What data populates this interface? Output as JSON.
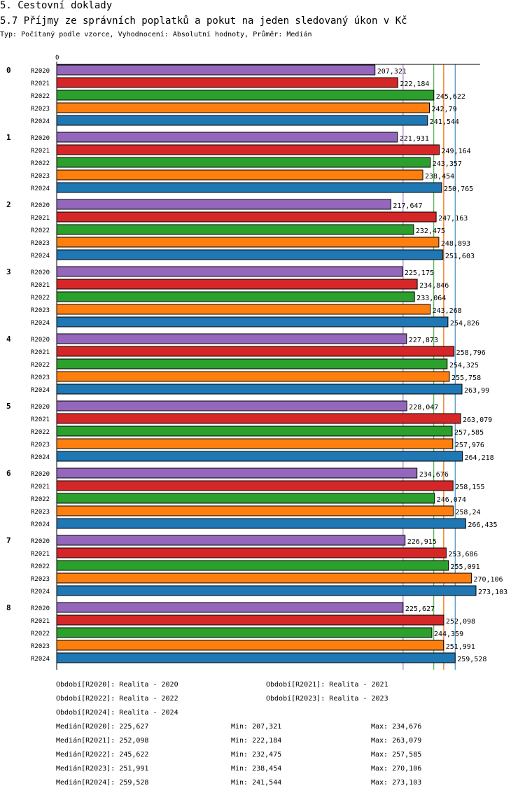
{
  "header": {
    "section": "5. Cestovní doklady",
    "title": "5.7 Příjmy ze správních poplatků a pokut na jeden sledovaný úkon v Kč",
    "subtitle": "Typ: Počítaný podle vzorce, Vyhodnocení: Absolutní hodnoty, Průměr: Medián"
  },
  "chart_data": {
    "type": "bar",
    "orientation": "horizontal",
    "axis_zero_label": "0",
    "xlim": [
      0,
      273103
    ],
    "groups": [
      "0",
      "1",
      "2",
      "3",
      "4",
      "5",
      "6",
      "7",
      "8"
    ],
    "series_names": [
      "R2020",
      "R2021",
      "R2022",
      "R2023",
      "R2024"
    ],
    "colors": [
      "#9467bd",
      "#d62728",
      "#2ca02c",
      "#ff7f0e",
      "#1f77b4"
    ],
    "values": [
      [
        207321,
        222184,
        245622,
        242790,
        241544
      ],
      [
        221931,
        249164,
        243357,
        238454,
        250765
      ],
      [
        217647,
        247163,
        232475,
        248893,
        251603
      ],
      [
        225175,
        234846,
        233064,
        243268,
        254826
      ],
      [
        227873,
        258796,
        254325,
        255758,
        263990
      ],
      [
        228047,
        263079,
        257585,
        257976,
        264218
      ],
      [
        234676,
        258155,
        246074,
        258240,
        266435
      ],
      [
        226915,
        253686,
        255091,
        270106,
        273103
      ],
      [
        225627,
        252098,
        244359,
        251991,
        259528
      ]
    ],
    "value_labels": [
      [
        "207,321",
        "222,184",
        "245,622",
        "242,79",
        "241,544"
      ],
      [
        "221,931",
        "249,164",
        "243,357",
        "238,454",
        "250,765"
      ],
      [
        "217,647",
        "247,163",
        "232,475",
        "248,893",
        "251,603"
      ],
      [
        "225,175",
        "234,846",
        "233,064",
        "243,268",
        "254,826"
      ],
      [
        "227,873",
        "258,796",
        "254,325",
        "255,758",
        "263,99"
      ],
      [
        "228,047",
        "263,079",
        "257,585",
        "257,976",
        "264,218"
      ],
      [
        "234,676",
        "258,155",
        "246,074",
        "258,24",
        "266,435"
      ],
      [
        "226,915",
        "253,686",
        "255,091",
        "270,106",
        "273,103"
      ],
      [
        "225,627",
        "252,098",
        "244,359",
        "251,991",
        "259,528"
      ]
    ],
    "median_lines": [
      225627,
      252098,
      245622,
      251991,
      259528
    ]
  },
  "legend": {
    "periods": [
      "Období[R2020]: Realita - 2020",
      "Období[R2021]: Realita - 2021",
      "Období[R2022]: Realita - 2022",
      "Období[R2023]: Realita - 2023",
      "Období[R2024]: Realita - 2024"
    ],
    "stats": [
      {
        "median": "Medián[R2020]: 225,627",
        "min": "Min: 207,321",
        "max": "Max: 234,676"
      },
      {
        "median": "Medián[R2021]: 252,098",
        "min": "Min: 222,184",
        "max": "Max: 263,079"
      },
      {
        "median": "Medián[R2022]: 245,622",
        "min": "Min: 232,475",
        "max": "Max: 257,585"
      },
      {
        "median": "Medián[R2023]: 251,991",
        "min": "Min: 238,454",
        "max": "Max: 270,106"
      },
      {
        "median": "Medián[R2024]: 259,528",
        "min": "Min: 241,544",
        "max": "Max: 273,103"
      }
    ]
  }
}
